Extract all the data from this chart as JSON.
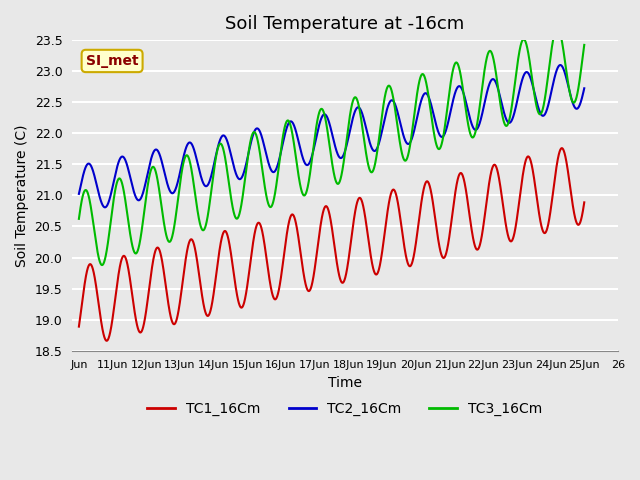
{
  "title": "Soil Temperature at -16cm",
  "xlabel": "Time",
  "ylabel": "Soil Temperature (C)",
  "ylim": [
    18.5,
    23.5
  ],
  "annotation_text": "SI_met",
  "background_color": "#e8e8e8",
  "plot_bg_color": "#e8e8e8",
  "grid_color": "white",
  "series": {
    "TC1_16Cm": {
      "color": "#cc0000",
      "lw": 1.5
    },
    "TC2_16Cm": {
      "color": "#0000cc",
      "lw": 1.5
    },
    "TC3_16Cm": {
      "color": "#00bb00",
      "lw": 1.5
    }
  },
  "xtick_positions": [
    0,
    1,
    2,
    3,
    4,
    5,
    6,
    7,
    8,
    9,
    10,
    11,
    12,
    13,
    14,
    15,
    16
  ],
  "xtick_labels": [
    "Jun",
    "11Jun",
    "12Jun",
    "13Jun",
    "14Jun",
    "15Jun",
    "16Jun",
    "17Jun",
    "18Jun",
    "19Jun",
    "20Jun",
    "21Jun",
    "22Jun",
    "23Jun",
    "24Jun",
    "25Jun",
    "26"
  ],
  "ytick_vals": [
    18.5,
    19.0,
    19.5,
    20.0,
    20.5,
    21.0,
    21.5,
    22.0,
    22.5,
    23.0,
    23.5
  ],
  "title_fontsize": 13,
  "legend_fontsize": 10,
  "axis_label_fontsize": 10
}
